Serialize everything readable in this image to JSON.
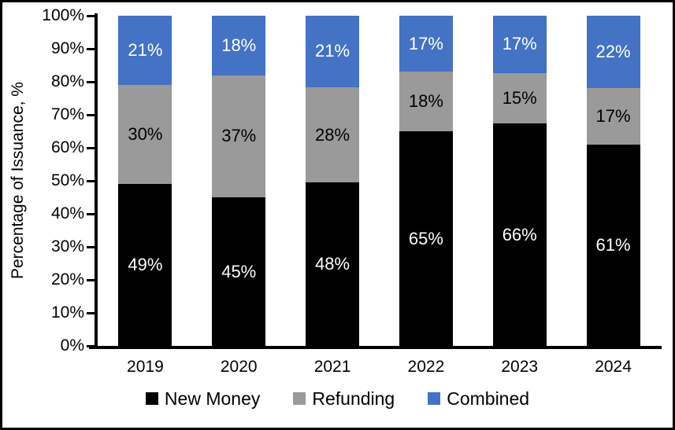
{
  "chart_data": {
    "type": "bar",
    "stacked": true,
    "title": "",
    "xlabel": "",
    "ylabel": "Percentage of Issuance, %",
    "ylim": [
      0,
      100
    ],
    "y_tick_labels": [
      "0%",
      "10%",
      "20%",
      "30%",
      "40%",
      "50%",
      "60%",
      "70%",
      "80%",
      "90%",
      "100%"
    ],
    "grid": false,
    "legend_position": "bottom",
    "data_label_suffix": "%",
    "categories": [
      "2019",
      "2020",
      "2021",
      "2022",
      "2023",
      "2024"
    ],
    "series": [
      {
        "name": "New Money",
        "color": "#000000",
        "label_color": "#ffffff",
        "values": [
          49,
          45,
          48,
          65,
          66,
          61
        ]
      },
      {
        "name": "Refunding",
        "color": "#9A9A9A",
        "label_color": "#000000",
        "values": [
          30,
          37,
          28,
          18,
          15,
          17
        ]
      },
      {
        "name": "Combined",
        "color": "#4472C4",
        "label_color": "#ffffff",
        "values": [
          21,
          18,
          21,
          17,
          17,
          22
        ]
      }
    ]
  },
  "colors": {
    "background": "#ffffff",
    "frame": "#000000",
    "axis": "#000000",
    "text": "#000000"
  }
}
